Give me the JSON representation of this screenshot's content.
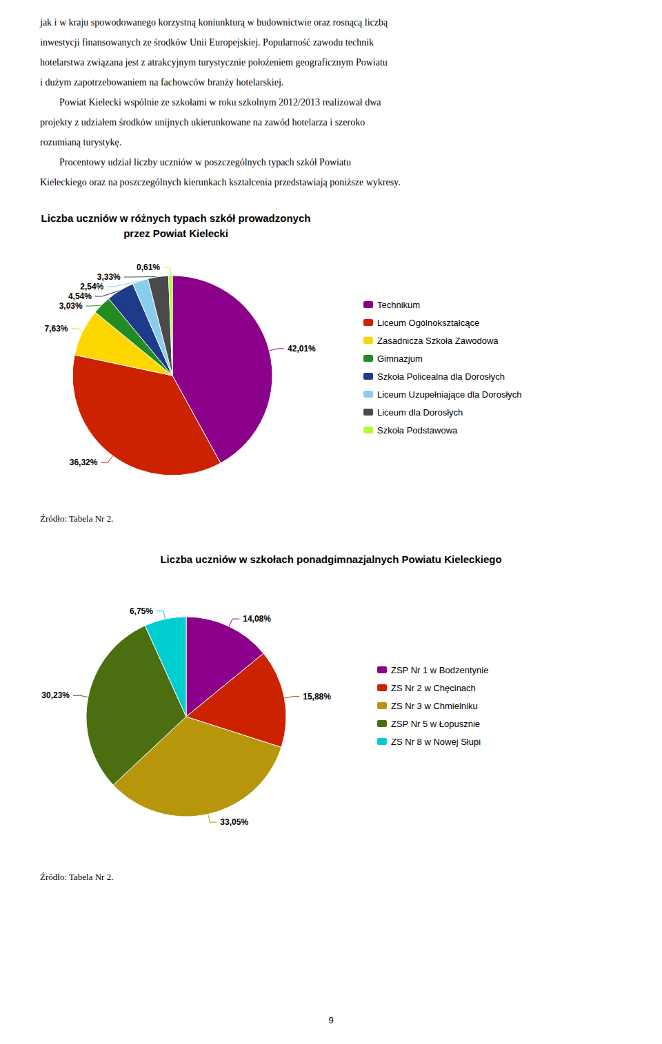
{
  "chart_data": [
    {
      "type": "pie",
      "title": "Liczba uczniów w różnych typach szkół prowadzonych\nprzez Powiat Kielecki",
      "categories": [
        "Technikum",
        "Liceum Ogólnokształcące",
        "Zasadnicza Szkoła Zawodowa",
        "Gimnazjum",
        "Szkoła Policealna dla Dorosłych",
        "Liceum Uzupełniające dla Dorosłych",
        "Liceum dla Dorosłych",
        "Szkoła Podstawowa"
      ],
      "values": [
        42.01,
        36.32,
        7.63,
        3.03,
        4.54,
        2.54,
        3.33,
        0.61
      ],
      "value_labels": [
        "42,01%",
        "36,32%",
        "7,63%",
        "3,03%",
        "4,54%",
        "2,54%",
        "3,33%",
        "0,61%"
      ],
      "colors": [
        "#8B008B",
        "#CC2200",
        "#FFD700",
        "#228B22",
        "#1E3A8A",
        "#87CEEB",
        "#4A4A4A",
        "#ADFF2F"
      ],
      "data_labels": true,
      "legend": "right",
      "annotations": [
        "jak i w kraju spowodowanego korzystną koniunkturą w budownictwie oraz rosnącą liczbą",
        "inwestycji finansowanych ze środków Unii Europejskiej. Popularność zawodu technik",
        "hotelarstwa związana jest z atrakcyjnym turystycznie położeniem geograficznym Powiatu",
        "i dużym zapotrzebowaniem na fachowców branży hotelarskiej.",
        "        Powiat Kielecki wspólnie ze szkołami w roku szkolnym 2012/2013 realizował dwa",
        "projekty z udziałem środków unijnych ukierunkowane na zawód hotelarza i szeroko",
        "rozumianą turystykę.",
        "        Procentowy udział liczby uczniów w poszczególnych typach szkół Powiatu",
        "Kieleckiego oraz na poszczególnych kierunkach kształcenia przedstawiają poniższe wykresy.",
        "Źródło: Tabela Nr 2."
      ]
    },
    {
      "type": "pie",
      "title": "Liczba uczniów w szkołach ponadgimnazjalnych Powiatu Kieleckiego",
      "categories": [
        "ZSP Nr 1 w Bodzentynie",
        "ZS Nr 2 w Chęcinach",
        "ZS Nr 3 w Chmielniku",
        "ZSP Nr 5 w Łopusznie",
        "ZS Nr 8 w Nowej Słupi"
      ],
      "values": [
        14.08,
        15.88,
        33.05,
        30.23,
        6.75
      ],
      "value_labels": [
        "14,08%",
        "15,88%",
        "33,05%",
        "30,23%",
        "6,75%"
      ],
      "colors": [
        "#8B008B",
        "#CC2200",
        "#B8960C",
        "#4B6E10",
        "#00CED1"
      ],
      "data_labels": true,
      "legend": "right",
      "annotations": [
        "Źródło: Tabela Nr 2.",
        "9"
      ]
    }
  ]
}
